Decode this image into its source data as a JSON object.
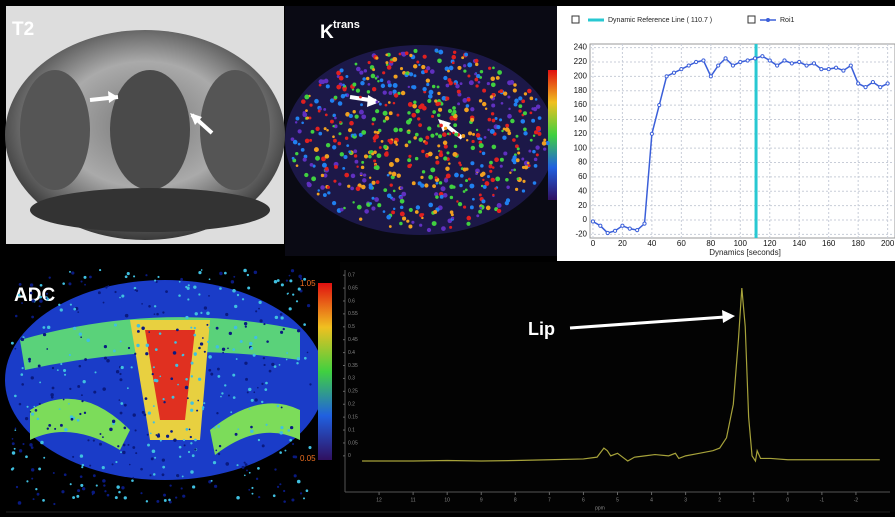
{
  "panels": {
    "t2_label": "T2",
    "ktrans_label": "K",
    "ktrans_sup": "trans",
    "adc_label": "ADC",
    "adc_scale_top": "1.05",
    "adc_scale_bottom": "0.05",
    "lip_label": "Lip"
  },
  "chart_data": [
    {
      "type": "line",
      "x_label": "Dynamics [seconds]",
      "reference_label": "Dynamic Reference Line ( 110.7 )",
      "reference_line": 110.7,
      "reference_color": "#28c8d2",
      "x": [
        0,
        5,
        10,
        15,
        20,
        25,
        30,
        35,
        40,
        45,
        50,
        55,
        60,
        65,
        70,
        75,
        80,
        85,
        90,
        95,
        100,
        105,
        110,
        115,
        120,
        125,
        130,
        135,
        140,
        145,
        150,
        155,
        160,
        165,
        170,
        175,
        180,
        185,
        190,
        195,
        200
      ],
      "series": [
        {
          "name": "Roi1",
          "color": "#3b5fd9",
          "values": [
            -2,
            -8,
            -18,
            -15,
            -8,
            -12,
            -14,
            -5,
            120,
            160,
            200,
            205,
            210,
            215,
            220,
            222,
            200,
            215,
            225,
            215,
            220,
            222,
            225,
            228,
            222,
            215,
            222,
            218,
            220,
            215,
            218,
            210,
            210,
            212,
            208,
            215,
            190,
            185,
            192,
            185,
            190
          ]
        }
      ],
      "xlim": [
        -2,
        205
      ],
      "ylim": [
        -25,
        245
      ],
      "xticks": [
        0,
        20,
        40,
        60,
        80,
        100,
        120,
        140,
        160,
        180,
        200
      ],
      "yticks": [
        -20,
        0,
        20,
        40,
        60,
        80,
        100,
        120,
        140,
        160,
        180,
        200,
        220,
        240
      ],
      "grid": true
    },
    {
      "type": "spectrum",
      "x_label": "ppm",
      "color": "#a6a23a",
      "x": [
        12.5,
        11,
        10,
        9,
        8,
        7,
        6,
        5.6,
        5.4,
        5.3,
        5.2,
        5.0,
        4.8,
        4.7,
        4.5,
        4.2,
        3.9,
        3.5,
        3.3,
        3.2,
        3.0,
        2.6,
        2.2,
        2.0,
        1.8,
        1.6,
        1.45,
        1.35,
        1.25,
        1.15,
        1.05,
        0.95,
        0.9,
        0.8,
        0.5,
        0,
        -1,
        -2,
        -2.7
      ],
      "values": [
        -0.02,
        -0.02,
        -0.018,
        -0.02,
        -0.018,
        -0.015,
        -0.012,
        -0.005,
        0.03,
        0.02,
        0.0,
        0.01,
        -0.01,
        -0.02,
        -0.005,
        0.0,
        0.005,
        0.0,
        0.01,
        -0.01,
        0.0,
        0.01,
        0.02,
        0.03,
        0.07,
        0.2,
        0.45,
        0.65,
        0.5,
        0.15,
        0.0,
        -0.02,
        0.02,
        -0.01,
        -0.01,
        -0.015,
        -0.015,
        -0.015,
        -0.015
      ],
      "xlim": [
        13,
        -3
      ],
      "ylim": [
        -0.14,
        0.72
      ],
      "xticks": [
        12,
        11,
        10,
        9,
        8,
        7,
        6,
        5,
        4,
        3,
        2,
        1,
        0,
        -1,
        -2
      ],
      "yticks": [
        0,
        0.05,
        0.1,
        0.15,
        0.2,
        0.25,
        0.3,
        0.35,
        0.4,
        0.45,
        0.5,
        0.55,
        0.6,
        0.65,
        0.7
      ]
    }
  ]
}
